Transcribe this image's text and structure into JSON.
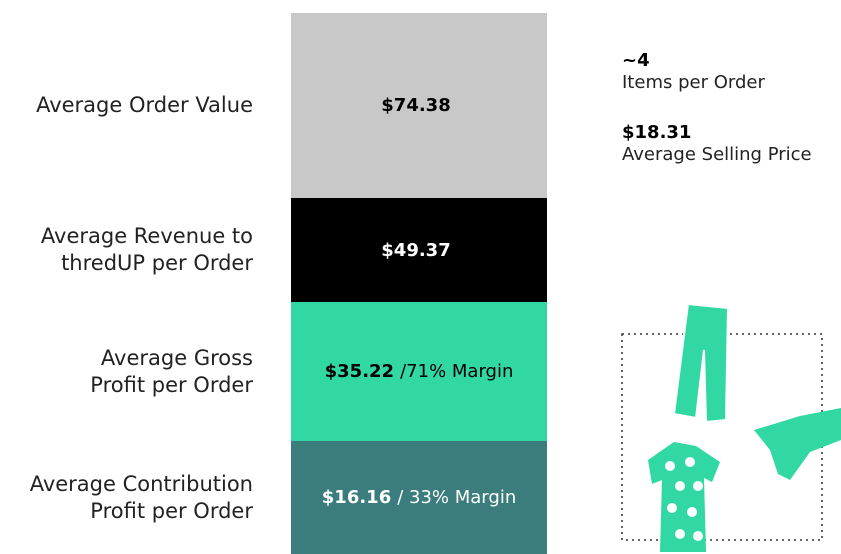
{
  "rows": [
    {
      "label": [
        "Average Order Value"
      ],
      "value": "$74.38",
      "color": "#c8c8c8",
      "text_color": "#000000"
    },
    {
      "label": [
        "Average Revenue to",
        "thredUP per Order"
      ],
      "value": "$49.37",
      "color": "#000000",
      "text_color": "#ffffff"
    },
    {
      "label": [
        "Average Gross",
        "Profit per Order"
      ],
      "value": "$35.22",
      "note": "/71% Margin",
      "color": "#31d8a4",
      "text_color": "#000000"
    },
    {
      "label": [
        "Average Contribution",
        "Profit per Order"
      ],
      "value": "$16.16",
      "note": "/ 33% Margin",
      "color": "#3a7d7c",
      "text_color": "#ffffff"
    }
  ],
  "stats": [
    {
      "value": "~4",
      "label": "Items per Order"
    },
    {
      "value": "$18.31",
      "label": "Average Selling Price"
    }
  ]
}
